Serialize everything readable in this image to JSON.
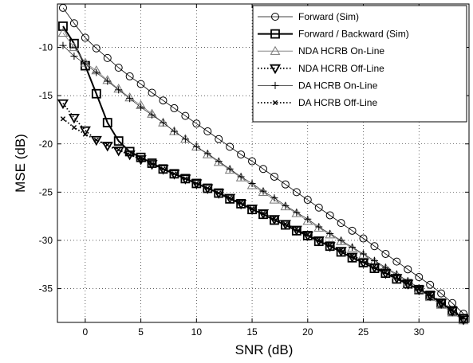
{
  "chart_data": {
    "type": "line",
    "title": "",
    "xlabel": "SNR (dB)",
    "ylabel": "MSE (dB)",
    "xlim": [
      -2.5,
      34.5
    ],
    "ylim": [
      -38.5,
      -5.5
    ],
    "xticks": [
      0,
      5,
      10,
      15,
      20,
      25,
      30
    ],
    "yticks": [
      -10,
      -15,
      -20,
      -25,
      -30,
      -35
    ],
    "grid": true,
    "legend_position": "top-right",
    "x": [
      -2,
      -1,
      0,
      1,
      2,
      3,
      4,
      5,
      6,
      7,
      8,
      9,
      10,
      11,
      12,
      13,
      14,
      15,
      16,
      17,
      18,
      19,
      20,
      21,
      22,
      23,
      24,
      25,
      26,
      27,
      28,
      29,
      30,
      31,
      32,
      33,
      34
    ],
    "series": [
      {
        "name": "Forward (Sim)",
        "color": "#000000",
        "marker": "circle",
        "line": "solid",
        "width": 0.8,
        "values": [
          -5.9,
          -7.5,
          -9.0,
          -10.1,
          -11.1,
          -12.1,
          -13.0,
          -13.8,
          -14.7,
          -15.5,
          -16.3,
          -17.1,
          -17.9,
          -18.7,
          -19.5,
          -20.3,
          -21.1,
          -21.8,
          -22.6,
          -23.4,
          -24.2,
          -25.0,
          -25.8,
          -26.6,
          -27.4,
          -28.2,
          -29.0,
          -29.8,
          -30.6,
          -31.4,
          -32.2,
          -33.0,
          -33.8,
          -34.6,
          -35.5,
          -36.5,
          -37.6
        ]
      },
      {
        "name": "Forward / Backward (Sim)",
        "color": "#000000",
        "marker": "square",
        "line": "solid",
        "width": 2,
        "values": [
          -7.8,
          -9.6,
          -11.9,
          -14.8,
          -17.8,
          -19.7,
          -20.8,
          -21.4,
          -22.0,
          -22.6,
          -23.1,
          -23.6,
          -24.1,
          -24.6,
          -25.1,
          -25.7,
          -26.2,
          -26.8,
          -27.3,
          -27.9,
          -28.4,
          -29.0,
          -29.5,
          -30.1,
          -30.6,
          -31.2,
          -31.8,
          -32.3,
          -32.9,
          -33.4,
          -34.0,
          -34.5,
          -35.1,
          -35.7,
          -36.5,
          -37.3,
          -38.1
        ]
      },
      {
        "name": "NDA HCRB On-Line",
        "color": "#777777",
        "marker": "triangle-up",
        "line": "solid",
        "width": 0.8,
        "values": [
          -8.5,
          -10.0,
          -11.6,
          -12.4,
          -13.4,
          -14.3,
          -15.2,
          -16.0,
          -16.9,
          -17.8,
          -18.7,
          -19.5,
          -20.3,
          -21.1,
          -21.9,
          -22.7,
          -23.5,
          -24.3,
          -25.0,
          -25.8,
          -26.5,
          -27.2,
          -28.0,
          -28.7,
          -29.4,
          -30.1,
          -30.8,
          -31.5,
          -32.2,
          -32.9,
          -33.6,
          -34.3,
          -35.1,
          -35.9,
          -36.7,
          -37.5,
          -38.3
        ]
      },
      {
        "name": "NDA HCRB Off-Line",
        "color": "#000000",
        "marker": "triangle-down",
        "line": "dotted",
        "width": 1.8,
        "values": [
          -15.8,
          -17.3,
          -18.6,
          -19.6,
          -20.2,
          -20.7,
          -21.1,
          -21.6,
          -22.1,
          -22.6,
          -23.1,
          -23.6,
          -24.1,
          -24.6,
          -25.1,
          -25.6,
          -26.2,
          -26.7,
          -27.2,
          -27.8,
          -28.3,
          -28.9,
          -29.5,
          -30.0,
          -30.6,
          -31.1,
          -31.7,
          -32.3,
          -32.8,
          -33.4,
          -33.9,
          -34.5,
          -35.1,
          -35.7,
          -36.5,
          -37.3,
          -38.2
        ]
      },
      {
        "name": "DA HCRB On-Line",
        "color": "#000000",
        "marker": "plus",
        "line": "solid",
        "width": 0.6,
        "values": [
          -9.8,
          -10.9,
          -11.7,
          -12.6,
          -13.5,
          -14.4,
          -15.3,
          -16.2,
          -17.0,
          -17.8,
          -18.7,
          -19.5,
          -20.3,
          -21.0,
          -21.8,
          -22.6,
          -23.4,
          -24.1,
          -24.9,
          -25.6,
          -26.4,
          -27.1,
          -27.8,
          -28.6,
          -29.3,
          -30.0,
          -30.7,
          -31.4,
          -32.1,
          -32.8,
          -33.5,
          -34.2,
          -34.9,
          -35.7,
          -36.5,
          -37.3,
          -38.1
        ]
      },
      {
        "name": "DA HCRB Off-Line",
        "color": "#000000",
        "marker": "x",
        "line": "dotted",
        "width": 1.8,
        "values": [
          -17.4,
          -18.3,
          -19.0,
          -19.6,
          -20.1,
          -20.6,
          -21.1,
          -21.6,
          -22.1,
          -22.6,
          -23.1,
          -23.6,
          -24.1,
          -24.6,
          -25.1,
          -25.6,
          -26.1,
          -26.7,
          -27.2,
          -27.7,
          -28.3,
          -28.8,
          -29.4,
          -29.9,
          -30.5,
          -31.0,
          -31.6,
          -32.1,
          -32.7,
          -33.3,
          -33.8,
          -34.4,
          -35.0,
          -35.6,
          -36.4,
          -37.2,
          -38.0
        ]
      }
    ]
  }
}
